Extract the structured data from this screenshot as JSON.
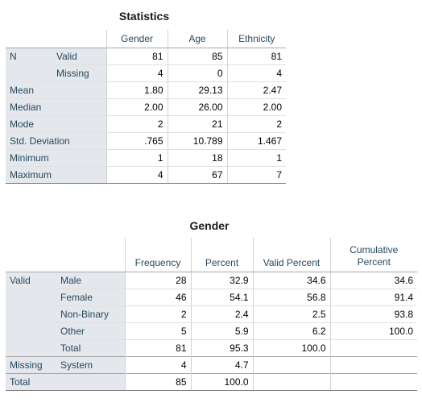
{
  "stats": {
    "title": "Statistics",
    "columns": [
      "Gender",
      "Age",
      "Ethnicity"
    ],
    "rows": [
      {
        "label": "N",
        "sub": "Valid",
        "values": [
          "81",
          "85",
          "81"
        ]
      },
      {
        "label": "",
        "sub": "Missing",
        "values": [
          "4",
          "0",
          "4"
        ]
      },
      {
        "label": "Mean",
        "sub": "",
        "values": [
          "1.80",
          "29.13",
          "2.47"
        ]
      },
      {
        "label": "Median",
        "sub": "",
        "values": [
          "2.00",
          "26.00",
          "2.00"
        ]
      },
      {
        "label": "Mode",
        "sub": "",
        "values": [
          "2",
          "21",
          "2"
        ]
      },
      {
        "label": "Std. Deviation",
        "sub": "",
        "values": [
          ".765",
          "10.789",
          "1.467"
        ]
      },
      {
        "label": "Minimum",
        "sub": "",
        "values": [
          "1",
          "18",
          "1"
        ]
      },
      {
        "label": "Maximum",
        "sub": "",
        "values": [
          "4",
          "67",
          "7"
        ]
      }
    ]
  },
  "gender": {
    "title": "Gender",
    "columns": [
      "Frequency",
      "Percent",
      "Valid Percent",
      "Cumulative Percent"
    ],
    "rows": [
      {
        "group": "Valid",
        "label": "Male",
        "values": [
          "28",
          "32.9",
          "34.6",
          "34.6"
        ]
      },
      {
        "group": "",
        "label": "Female",
        "values": [
          "46",
          "54.1",
          "56.8",
          "91.4"
        ]
      },
      {
        "group": "",
        "label": "Non-Binary",
        "values": [
          "2",
          "2.4",
          "2.5",
          "93.8"
        ]
      },
      {
        "group": "",
        "label": "Other",
        "values": [
          "5",
          "5.9",
          "6.2",
          "100.0"
        ]
      },
      {
        "group": "",
        "label": "Total",
        "values": [
          "81",
          "95.3",
          "100.0",
          ""
        ]
      },
      {
        "group": "Missing",
        "label": "System",
        "values": [
          "4",
          "4.7",
          "",
          ""
        ]
      },
      {
        "group": "Total",
        "label": "",
        "values": [
          "85",
          "100.0",
          "",
          ""
        ]
      }
    ]
  }
}
